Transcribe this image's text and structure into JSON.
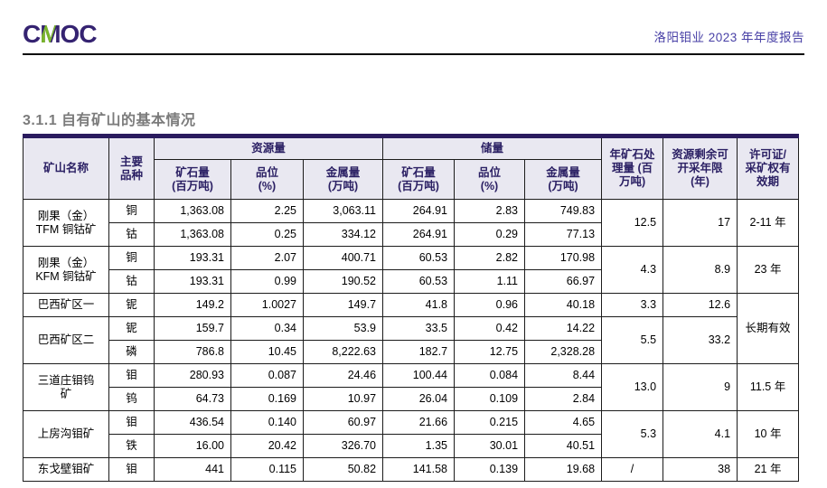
{
  "page": {
    "logo_text": "CMOC",
    "report_title": "洛阳钼业 2023 年年度报告",
    "section_title": "3.1.1 自有矿山的基本情况"
  },
  "colors": {
    "logo_purple": "#352371",
    "logo_green": "#79b629",
    "accent_bar": "#2a1b5e",
    "header_bg": "#e9e8f1",
    "header_text": "#2b2064",
    "report_title_text": "#4840a6",
    "section_title_text": "#7b7b7b"
  },
  "table": {
    "headers": {
      "mine_name": "矿山名称",
      "variety": "主要\n品种",
      "resources_group": "资源量",
      "reserves_group": "储量",
      "ore_qty": "矿石量\n(百万吨)",
      "grade": "品位\n(%)",
      "metal_qty": "金属量\n(万吨)",
      "annual_processing": "年矿石处\n理量 (百\n万吨)",
      "remaining_years": "资源剩余可\n开采年限\n(年)",
      "license": "许可证/\n采矿权有\n效期"
    },
    "groups": [
      {
        "name": "刚果（金）\nTFM 铜钴矿",
        "rows": [
          {
            "variety": "铜",
            "res_ore": "1,363.08",
            "res_grade": "2.25",
            "res_metal": "3,063.11",
            "rsv_ore": "264.91",
            "rsv_grade": "2.83",
            "rsv_metal": "749.83"
          },
          {
            "variety": "钴",
            "res_ore": "1,363.08",
            "res_grade": "0.25",
            "res_metal": "334.12",
            "rsv_ore": "264.91",
            "rsv_grade": "0.29",
            "rsv_metal": "77.13"
          }
        ],
        "annual_processing": "12.5",
        "remaining_years": "17",
        "license": "2-11 年"
      },
      {
        "name": "刚果（金）\nKFM 铜钴矿",
        "rows": [
          {
            "variety": "铜",
            "res_ore": "193.31",
            "res_grade": "2.07",
            "res_metal": "400.71",
            "rsv_ore": "60.53",
            "rsv_grade": "2.82",
            "rsv_metal": "170.98"
          },
          {
            "variety": "钴",
            "res_ore": "193.31",
            "res_grade": "0.99",
            "res_metal": "190.52",
            "rsv_ore": "60.53",
            "rsv_grade": "1.11",
            "rsv_metal": "66.97"
          }
        ],
        "annual_processing": "4.3",
        "remaining_years": "8.9",
        "license": "23 年"
      },
      {
        "name": "巴西矿区一",
        "rows": [
          {
            "variety": "铌",
            "res_ore": "149.2",
            "res_grade": "1.0027",
            "res_metal": "149.7",
            "rsv_ore": "41.8",
            "rsv_grade": "0.96",
            "rsv_metal": "40.18"
          }
        ],
        "annual_processing": "3.3",
        "remaining_years": "12.6",
        "license": "长期有效",
        "license_span": 3
      },
      {
        "name": "巴西矿区二",
        "rows": [
          {
            "variety": "铌",
            "res_ore": "159.7",
            "res_grade": "0.34",
            "res_metal": "53.9",
            "rsv_ore": "33.5",
            "rsv_grade": "0.42",
            "rsv_metal": "14.22"
          },
          {
            "variety": "磷",
            "res_ore": "786.8",
            "res_grade": "10.45",
            "res_metal": "8,222.63",
            "rsv_ore": "182.7",
            "rsv_grade": "12.75",
            "rsv_metal": "2,328.28"
          }
        ],
        "annual_processing": "5.5",
        "remaining_years": "33.2",
        "license": null
      },
      {
        "name": "三道庄钼钨\n矿",
        "rows": [
          {
            "variety": "钼",
            "res_ore": "280.93",
            "res_grade": "0.087",
            "res_metal": "24.46",
            "rsv_ore": "100.44",
            "rsv_grade": "0.084",
            "rsv_metal": "8.44"
          },
          {
            "variety": "钨",
            "res_ore": "64.73",
            "res_grade": "0.169",
            "res_metal": "10.97",
            "rsv_ore": "26.04",
            "rsv_grade": "0.109",
            "rsv_metal": "2.84"
          }
        ],
        "annual_processing": "13.0",
        "remaining_years": "9",
        "license": "11.5 年"
      },
      {
        "name": "上房沟钼矿",
        "rows": [
          {
            "variety": "钼",
            "res_ore": "436.54",
            "res_grade": "0.140",
            "res_metal": "60.97",
            "rsv_ore": "21.66",
            "rsv_grade": "0.215",
            "rsv_metal": "4.65"
          },
          {
            "variety": "铁",
            "res_ore": "16.00",
            "res_grade": "20.42",
            "res_metal": "326.70",
            "rsv_ore": "1.35",
            "rsv_grade": "30.01",
            "rsv_metal": "40.51"
          }
        ],
        "annual_processing": "5.3",
        "remaining_years": "4.1",
        "license": "10 年"
      },
      {
        "name": "东戈壁钼矿",
        "rows": [
          {
            "variety": "钼",
            "res_ore": "441",
            "res_grade": "0.115",
            "res_metal": "50.82",
            "rsv_ore": "141.58",
            "rsv_grade": "0.139",
            "rsv_metal": "19.68"
          }
        ],
        "annual_processing": "/",
        "remaining_years": "38",
        "license": "21 年"
      }
    ]
  }
}
